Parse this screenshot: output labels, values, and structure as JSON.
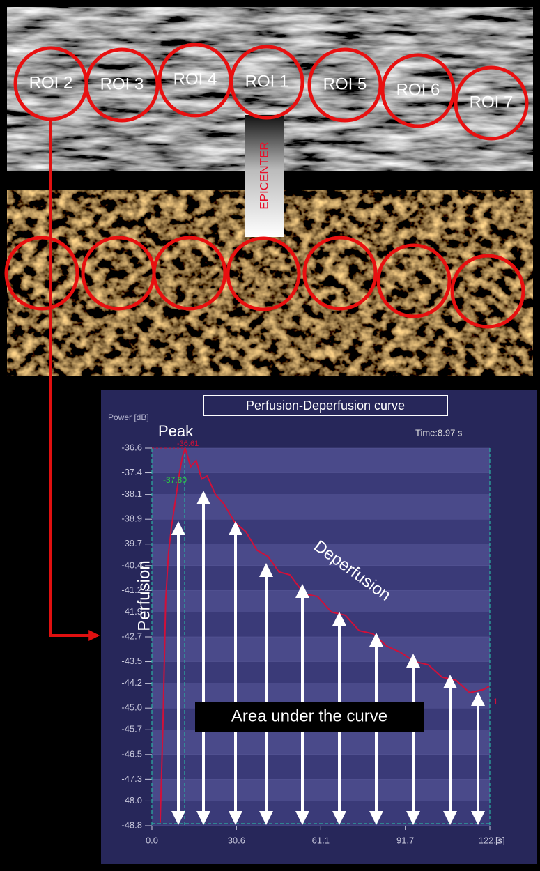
{
  "rois": {
    "labels": [
      "ROI 2",
      "ROI 3",
      "ROI 4",
      "ROI 1",
      "ROI 5",
      "ROI 6",
      "ROI 7"
    ]
  },
  "epicenter": "EPICENTER",
  "chart_data": {
    "type": "line",
    "title": "Perfusion-Deperfusion curve",
    "y_label": "Power [dB]",
    "x_unit": "[s]",
    "time_label": "Time:8.97 s",
    "annotations": {
      "peak": "Peak",
      "peak_value": "-36.61",
      "marker_value": "-37.80",
      "end_marker": "1",
      "perfusion": "Perfusion",
      "deperfusion": "Deperfusion",
      "auc": "Area under the curve"
    },
    "x": [
      3,
      4,
      5,
      6,
      7,
      8,
      9,
      10,
      11,
      12,
      13,
      14,
      16,
      18,
      20,
      23,
      26,
      30,
      34,
      38,
      42,
      46,
      50,
      55,
      60,
      65,
      70,
      75,
      80,
      85,
      90,
      95,
      100,
      105,
      110,
      115,
      120,
      122
    ],
    "series": [
      {
        "color": "#d0103a",
        "values": [
          -48.7,
          -45.5,
          -41.5,
          -40.0,
          -39.2,
          -38.6,
          -38.0,
          -37.4,
          -36.9,
          -36.6,
          -36.9,
          -37.2,
          -37.0,
          -37.6,
          -37.5,
          -38.1,
          -38.4,
          -39.0,
          -39.3,
          -39.9,
          -40.1,
          -40.6,
          -40.7,
          -41.3,
          -41.4,
          -41.9,
          -42.0,
          -42.5,
          -42.6,
          -43.0,
          -43.2,
          -43.5,
          -43.6,
          -44.0,
          -44.1,
          -44.5,
          -44.4,
          -44.3
        ]
      }
    ],
    "xlim": [
      0,
      122.3
    ],
    "xticks": [
      {
        "value": 0,
        "label": "0.0"
      },
      30.6,
      61.1,
      91.7,
      122.3
    ],
    "ylim": [
      -48.8,
      -36.6
    ],
    "yticks": [
      -36.6,
      -37.4,
      -38.1,
      -38.9,
      -39.7,
      -40.4,
      -41.2,
      -41.9,
      -42.7,
      -43.5,
      -44.2,
      {
        "value": -45,
        "label": "-45.0"
      },
      -45.7,
      -46.5,
      -47.3,
      {
        "value": -48,
        "label": "-48.0"
      },
      -48.8
    ],
    "grid": true
  }
}
